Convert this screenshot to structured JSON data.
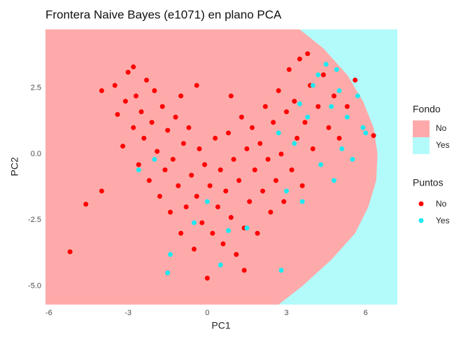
{
  "chart_data": {
    "type": "scatter",
    "title": "Frontera Naive Bayes (e1071) en plano PCA",
    "x_label": "PC1",
    "y_label": "PC2",
    "xlim": [
      -6.13,
      7.2
    ],
    "ylim": [
      -5.7,
      4.72
    ],
    "xticks": [
      -6,
      -3,
      0,
      3,
      6
    ],
    "yticks": [
      {
        "value": -5,
        "label": "-5.0"
      },
      -2.5,
      {
        "value": 0,
        "label": "0.0"
      },
      2.5
    ],
    "background": {
      "title": "Fondo",
      "levels": [
        {
          "name": "No",
          "color": "#ffaaaa"
        },
        {
          "name": "Yes",
          "color": "#b3fbfb"
        }
      ],
      "boundary_x": [
        3.5,
        4.4,
        5.3,
        5.9,
        6.3,
        6.45,
        6.4,
        6.1,
        5.6,
        4.7,
        3.6,
        2.7
      ],
      "boundary_y": [
        4.72,
        4.0,
        3.0,
        2.0,
        1.0,
        0,
        -1,
        -2,
        -3,
        -4,
        -5,
        -5.7
      ]
    },
    "legend_title": "Puntos",
    "series": [
      {
        "name": "No",
        "color": "#ff0000",
        "x": [
          -5.2,
          -4.6,
          -4.0,
          -4.0,
          -3.5,
          -3.4,
          -3.2,
          -3.1,
          -3.0,
          -2.8,
          -2.7,
          -2.6,
          -2.5,
          -2.4,
          -2.3,
          -2.2,
          -2.1,
          -2.0,
          -1.9,
          -1.8,
          -1.7,
          -1.6,
          -1.5,
          -1.4,
          -1.3,
          -1.2,
          -1.1,
          -1.0,
          -0.9,
          -0.8,
          -0.7,
          -0.6,
          -0.5,
          -0.4,
          -0.3,
          -0.2,
          -0.1,
          0.0,
          0.1,
          0.2,
          0.3,
          0.4,
          0.5,
          0.6,
          0.7,
          0.8,
          0.9,
          1.0,
          1.1,
          1.2,
          1.3,
          1.4,
          1.5,
          1.6,
          1.7,
          1.8,
          1.9,
          2.0,
          2.1,
          2.2,
          2.3,
          2.4,
          2.5,
          2.6,
          2.7,
          2.8,
          2.9,
          3.0,
          3.1,
          3.2,
          3.3,
          3.4,
          3.5,
          3.6,
          3.7,
          3.8,
          3.9,
          4.0,
          4.2,
          4.4,
          4.6,
          4.8,
          5.0,
          5.3,
          5.6,
          6.3,
          -2.8,
          -1.0,
          -0.4,
          0.9,
          -1.5,
          1.4
        ],
        "values": [
          -3.7,
          -1.9,
          -1.4,
          2.4,
          2.6,
          1.5,
          0.3,
          2.0,
          3.1,
          1.0,
          2.2,
          -0.4,
          1.6,
          0.6,
          2.8,
          -1.0,
          1.2,
          2.4,
          0.1,
          -1.6,
          1.8,
          -0.6,
          0.9,
          -2.2,
          -0.2,
          1.4,
          -1.2,
          -3.0,
          0.4,
          -2.0,
          1.0,
          -0.8,
          -3.6,
          -1.6,
          0.2,
          -2.6,
          -0.4,
          -4.7,
          -1.2,
          -3.0,
          0.6,
          -2.0,
          -0.6,
          -3.4,
          -1.4,
          0.8,
          -2.4,
          -0.2,
          -3.8,
          -1.0,
          1.4,
          -2.8,
          0.2,
          -1.8,
          1.0,
          -0.6,
          -3.0,
          0.4,
          -1.4,
          1.8,
          -0.2,
          -2.2,
          1.2,
          -1.0,
          2.4,
          0.0,
          -1.8,
          1.6,
          3.2,
          -0.6,
          2.0,
          0.6,
          3.6,
          -1.2,
          1.2,
          3.8,
          2.6,
          0.2,
          1.8,
          3.0,
          1.0,
          2.2,
          0.6,
          1.8,
          2.8,
          0.7,
          3.3,
          2.2,
          2.6,
          2.2,
          -4.5,
          -4.4
        ]
      },
      {
        "name": "Yes",
        "color": "#1ee8f0",
        "x": [
          -2.6,
          -2.0,
          -1.5,
          -1.4,
          -0.5,
          0.0,
          0.5,
          0.8,
          1.5,
          2.8,
          2.7,
          3.0,
          3.3,
          3.6,
          3.8,
          4.0,
          4.2,
          4.3,
          4.5,
          4.7,
          4.8,
          5.0,
          5.1,
          5.3,
          5.5,
          5.7,
          5.9,
          6.0,
          4.9,
          3.5
        ],
        "values": [
          -0.6,
          -0.2,
          -4.5,
          -3.8,
          -2.6,
          -1.8,
          -4.2,
          -2.9,
          -2.8,
          -4.4,
          0.8,
          -1.4,
          0.4,
          -1.8,
          1.4,
          2.6,
          3.0,
          -0.4,
          3.4,
          1.8,
          -1.0,
          2.4,
          0.2,
          1.4,
          -0.2,
          2.2,
          1.0,
          0.8,
          3.2,
          1.9
        ]
      }
    ]
  }
}
